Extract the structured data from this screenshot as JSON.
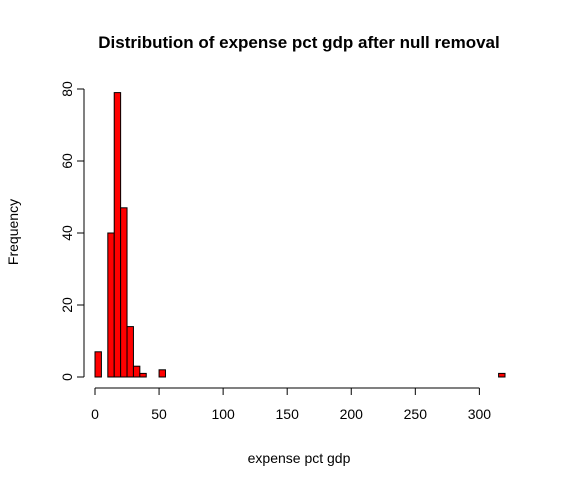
{
  "chart_data": {
    "type": "bar",
    "title": "Distribution of expense pct gdp after null removal",
    "xlabel": "expense pct gdp",
    "ylabel": "Frequency",
    "bar_color": "#ff0000",
    "bin_width": 5,
    "xlim": [
      0,
      320
    ],
    "ylim": [
      0,
      80
    ],
    "x_ticks": [
      "0",
      "50",
      "100",
      "150",
      "200",
      "250",
      "300"
    ],
    "y_ticks": [
      "0",
      "20",
      "40",
      "60",
      "80"
    ],
    "bins": [
      {
        "x0": 0,
        "x1": 5,
        "count": 7
      },
      {
        "x0": 5,
        "x1": 10,
        "count": 0
      },
      {
        "x0": 10,
        "x1": 15,
        "count": 40
      },
      {
        "x0": 15,
        "x1": 20,
        "count": 79
      },
      {
        "x0": 20,
        "x1": 25,
        "count": 47
      },
      {
        "x0": 25,
        "x1": 30,
        "count": 14
      },
      {
        "x0": 30,
        "x1": 35,
        "count": 3
      },
      {
        "x0": 35,
        "x1": 40,
        "count": 1
      },
      {
        "x0": 40,
        "x1": 45,
        "count": 0
      },
      {
        "x0": 45,
        "x1": 50,
        "count": 0
      },
      {
        "x0": 50,
        "x1": 55,
        "count": 2
      },
      {
        "x0": 315,
        "x1": 320,
        "count": 1
      }
    ]
  }
}
